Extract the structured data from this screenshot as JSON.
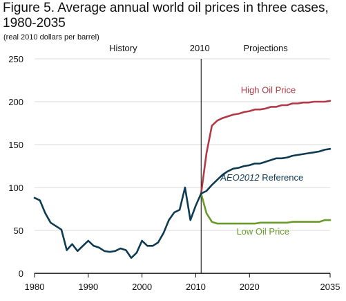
{
  "title_line1": "Figure 5. Average annual world oil prices in three cases,",
  "title_line2": "1980-2035",
  "subtitle": "(real 2010 dollars per barrel)",
  "chart_data": {
    "type": "line",
    "xlim": [
      1980,
      2035
    ],
    "ylim": [
      0,
      250
    ],
    "xticks": [
      "1980",
      "1990",
      "2000",
      "2010",
      "2020",
      "2035"
    ],
    "yticks": [
      "0",
      "50",
      "100",
      "150",
      "200",
      "250"
    ],
    "grid": "horizontal",
    "divider_year": 2011,
    "divider_label": "2010",
    "history_label": "History",
    "projections_label": "Projections",
    "series": [
      {
        "key": "history",
        "color": "#0e3a52",
        "points": [
          [
            1980,
            88
          ],
          [
            1981,
            85
          ],
          [
            1982,
            70
          ],
          [
            1983,
            59
          ],
          [
            1984,
            55
          ],
          [
            1985,
            51
          ],
          [
            1986,
            27
          ],
          [
            1987,
            34
          ],
          [
            1988,
            26
          ],
          [
            1989,
            32
          ],
          [
            1990,
            38
          ],
          [
            1991,
            32
          ],
          [
            1992,
            30
          ],
          [
            1993,
            26
          ],
          [
            1994,
            25
          ],
          [
            1995,
            26
          ],
          [
            1996,
            29
          ],
          [
            1997,
            27
          ],
          [
            1998,
            18
          ],
          [
            1999,
            24
          ],
          [
            2000,
            38
          ],
          [
            2001,
            32
          ],
          [
            2002,
            32
          ],
          [
            2003,
            36
          ],
          [
            2004,
            47
          ],
          [
            2005,
            62
          ],
          [
            2006,
            71
          ],
          [
            2007,
            74
          ],
          [
            2008,
            100
          ],
          [
            2009,
            62
          ],
          [
            2010,
            79
          ],
          [
            2011,
            93
          ]
        ]
      },
      {
        "key": "high",
        "name": "High Oil Price",
        "color": "#b03a48",
        "points": [
          [
            2011,
            93
          ],
          [
            2012,
            140
          ],
          [
            2013,
            172
          ],
          [
            2014,
            178
          ],
          [
            2015,
            181
          ],
          [
            2016,
            183
          ],
          [
            2017,
            185
          ],
          [
            2018,
            186
          ],
          [
            2019,
            188
          ],
          [
            2020,
            189
          ],
          [
            2021,
            191
          ],
          [
            2022,
            191
          ],
          [
            2023,
            192
          ],
          [
            2024,
            194
          ],
          [
            2025,
            194
          ],
          [
            2026,
            196
          ],
          [
            2027,
            196
          ],
          [
            2028,
            198
          ],
          [
            2029,
            198
          ],
          [
            2030,
            199
          ],
          [
            2031,
            199
          ],
          [
            2032,
            200
          ],
          [
            2033,
            200
          ],
          [
            2034,
            200
          ],
          [
            2035,
            201
          ]
        ]
      },
      {
        "key": "reference",
        "name_italic": "AEO2012",
        "name_rest": " Reference",
        "color": "#0e3a52",
        "points": [
          [
            2011,
            93
          ],
          [
            2012,
            96
          ],
          [
            2013,
            103
          ],
          [
            2014,
            109
          ],
          [
            2015,
            115
          ],
          [
            2016,
            119
          ],
          [
            2017,
            122
          ],
          [
            2018,
            123
          ],
          [
            2019,
            125
          ],
          [
            2020,
            126
          ],
          [
            2021,
            128
          ],
          [
            2022,
            128
          ],
          [
            2023,
            130
          ],
          [
            2024,
            132
          ],
          [
            2025,
            134
          ],
          [
            2026,
            134
          ],
          [
            2027,
            135
          ],
          [
            2028,
            137
          ],
          [
            2029,
            138
          ],
          [
            2030,
            139
          ],
          [
            2031,
            140
          ],
          [
            2032,
            141
          ],
          [
            2033,
            142
          ],
          [
            2034,
            144
          ],
          [
            2035,
            145
          ]
        ]
      },
      {
        "key": "low",
        "name": "Low Oil Price",
        "color": "#6a9a2a",
        "points": [
          [
            2011,
            93
          ],
          [
            2012,
            70
          ],
          [
            2013,
            60
          ],
          [
            2014,
            58
          ],
          [
            2015,
            58
          ],
          [
            2016,
            58
          ],
          [
            2017,
            58
          ],
          [
            2018,
            58
          ],
          [
            2019,
            58
          ],
          [
            2020,
            58
          ],
          [
            2021,
            58
          ],
          [
            2022,
            59
          ],
          [
            2023,
            59
          ],
          [
            2024,
            59
          ],
          [
            2025,
            59
          ],
          [
            2026,
            59
          ],
          [
            2027,
            59
          ],
          [
            2028,
            60
          ],
          [
            2029,
            60
          ],
          [
            2030,
            60
          ],
          [
            2031,
            60
          ],
          [
            2032,
            60
          ],
          [
            2033,
            60
          ],
          [
            2034,
            62
          ],
          [
            2035,
            62
          ]
        ]
      }
    ]
  }
}
